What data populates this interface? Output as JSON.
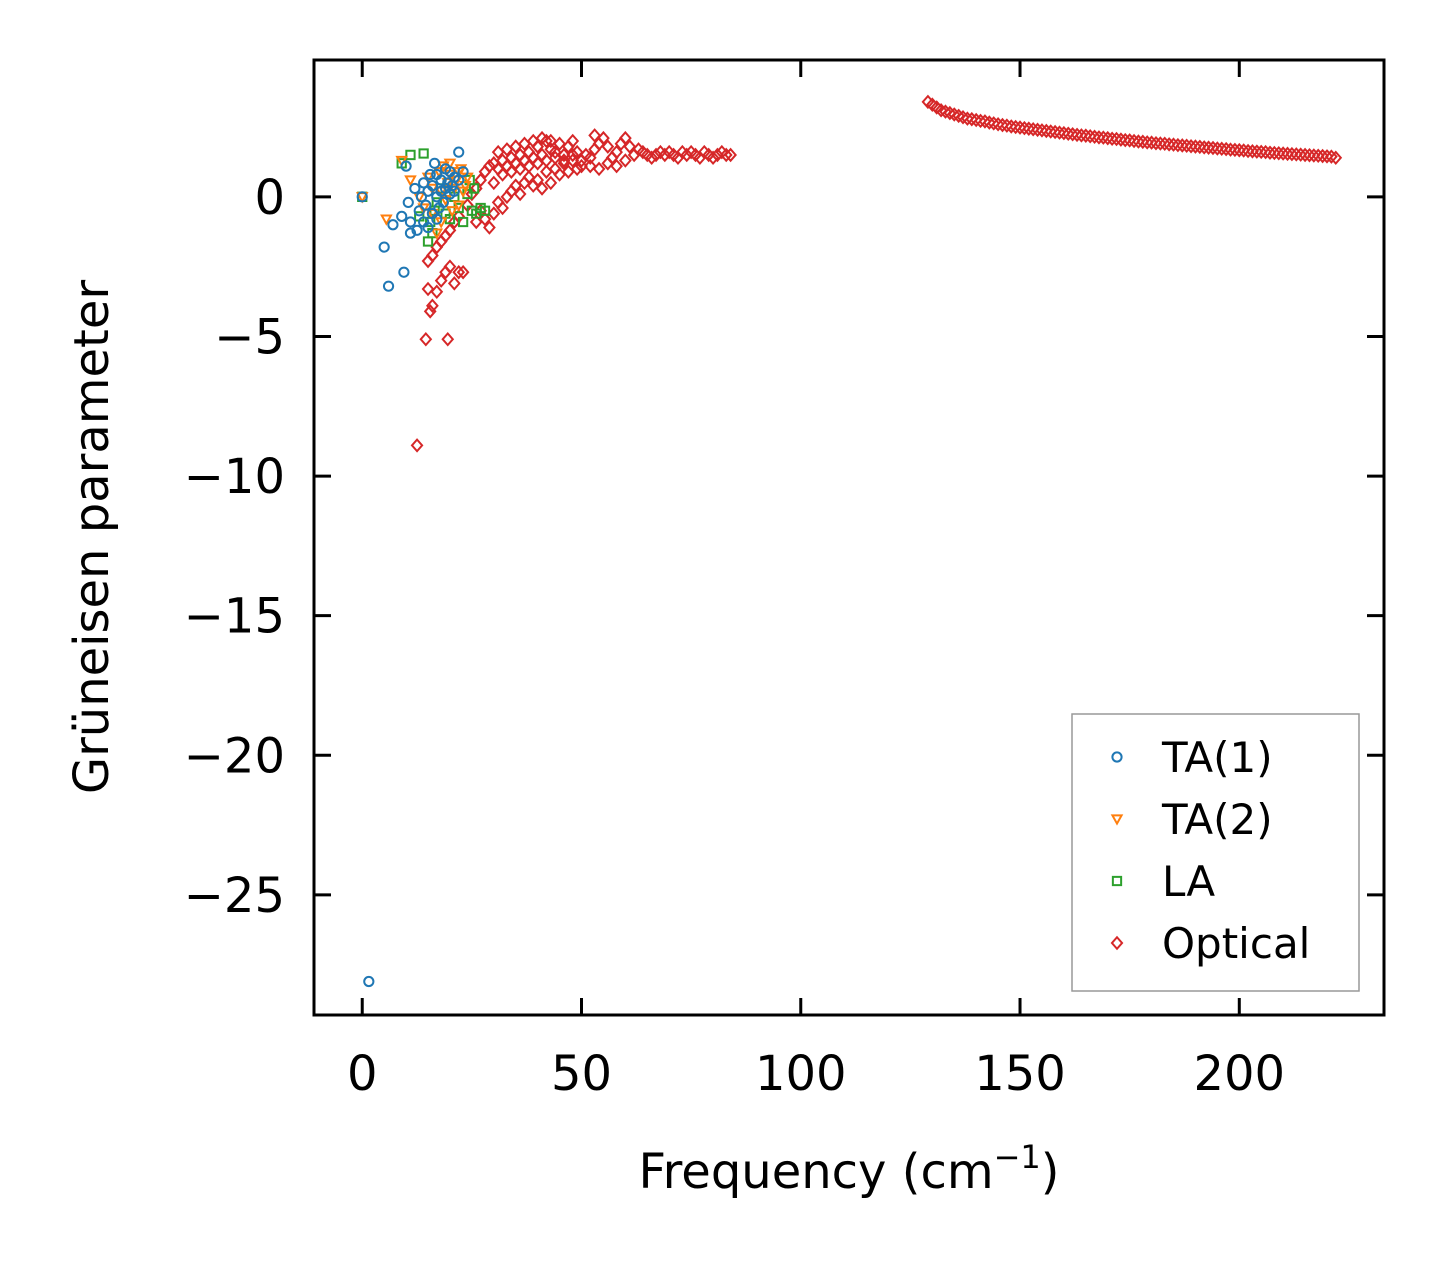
{
  "chart_data": {
    "type": "scatter",
    "title": "",
    "xlabel": "Frequency (cm",
    "xlabel_sup": "−1",
    "xlabel_end": ")",
    "ylabel": "Grüneisen parameter",
    "xlim": [
      -11,
      233
    ],
    "ylim": [
      -29.3,
      4.9
    ],
    "x_ticks": [
      0,
      50,
      100,
      150,
      200
    ],
    "x_tick_labels": [
      "0",
      "50",
      "100",
      "150",
      "200"
    ],
    "y_ticks": [
      0,
      -5,
      -10,
      -15,
      -20,
      -25
    ],
    "y_tick_labels": [
      "0",
      "−5",
      "−10",
      "−15",
      "−20",
      "−25"
    ],
    "legend_position": "bottom-right",
    "series": [
      {
        "name": "TA(1)",
        "marker": "circle",
        "color": "#1f77b4",
        "points": [
          [
            1.5,
            -28.1
          ],
          [
            0,
            0
          ],
          [
            5,
            -1.8
          ],
          [
            6,
            -3.2
          ],
          [
            7,
            -1.0
          ],
          [
            9,
            -0.7
          ],
          [
            9.5,
            -2.7
          ],
          [
            10,
            1.1
          ],
          [
            10.5,
            -0.2
          ],
          [
            11,
            -1.3
          ],
          [
            11,
            -0.9
          ],
          [
            12,
            0.3
          ],
          [
            12.5,
            -1.2
          ],
          [
            13,
            -0.5
          ],
          [
            13.5,
            0.0
          ],
          [
            14,
            0.5
          ],
          [
            14.5,
            -0.3
          ],
          [
            15,
            0.2
          ],
          [
            15,
            -1.1
          ],
          [
            16,
            0.4
          ],
          [
            16,
            -0.6
          ],
          [
            17,
            0.0
          ],
          [
            17,
            0.8
          ],
          [
            17.5,
            -0.4
          ],
          [
            18,
            0.6
          ],
          [
            18,
            0.2
          ],
          [
            18.5,
            -0.2
          ],
          [
            19,
            1.0
          ],
          [
            19,
            0.3
          ],
          [
            19.5,
            0.5
          ],
          [
            20,
            0.1
          ],
          [
            20,
            0.9
          ],
          [
            20.5,
            0.4
          ],
          [
            21,
            0.7
          ],
          [
            21,
            0.2
          ],
          [
            22,
            1.6
          ],
          [
            22,
            0.6
          ],
          [
            23,
            0.9
          ],
          [
            16.5,
            1.2
          ],
          [
            14,
            -0.9
          ],
          [
            15.5,
            0.8
          ],
          [
            17,
            -0.8
          ]
        ]
      },
      {
        "name": "TA(2)",
        "marker": "triangle-down",
        "color": "#ff7f0e",
        "points": [
          [
            0,
            0
          ],
          [
            5.5,
            -0.8
          ],
          [
            9,
            1.3
          ],
          [
            11,
            0.6
          ],
          [
            13,
            0.0
          ],
          [
            14,
            -0.4
          ],
          [
            15,
            0.7
          ],
          [
            16,
            0.3
          ],
          [
            17,
            -1.3
          ],
          [
            17.5,
            0.9
          ],
          [
            18,
            0.2
          ],
          [
            18.5,
            1.1
          ],
          [
            19,
            -0.1
          ],
          [
            19.5,
            0.5
          ],
          [
            20,
            0.8
          ],
          [
            20.5,
            -0.5
          ],
          [
            21,
            0.3
          ],
          [
            21.5,
            0.6
          ],
          [
            22,
            0.9
          ],
          [
            22.5,
            1.0
          ],
          [
            23,
            0.2
          ],
          [
            23.5,
            0.4
          ],
          [
            24,
            0.7
          ],
          [
            16,
            -0.6
          ],
          [
            18,
            -0.9
          ],
          [
            22,
            -0.3
          ],
          [
            20,
            1.2
          ]
        ]
      },
      {
        "name": "LA",
        "marker": "square",
        "color": "#2ca02c",
        "points": [
          [
            0,
            0
          ],
          [
            9,
            1.2
          ],
          [
            11,
            1.5
          ],
          [
            14,
            1.55
          ],
          [
            13,
            -0.7
          ],
          [
            15,
            -1.6
          ],
          [
            15.5,
            -0.9
          ],
          [
            16,
            -1.3
          ],
          [
            16.5,
            -0.5
          ],
          [
            17,
            -0.2
          ],
          [
            18,
            0.3
          ],
          [
            19,
            -0.6
          ],
          [
            20,
            -0.8
          ],
          [
            21,
            0.0
          ],
          [
            22,
            -0.4
          ],
          [
            23,
            -0.9
          ],
          [
            24,
            0.1
          ],
          [
            25,
            -0.5
          ],
          [
            26,
            -0.6
          ],
          [
            27,
            -0.4
          ],
          [
            28,
            -0.5
          ],
          [
            24.5,
            0.6
          ],
          [
            25.5,
            0.3
          ],
          [
            19.5,
            0.5
          ]
        ]
      },
      {
        "name": "Optical",
        "marker": "diamond",
        "color": "#d62728",
        "points": [
          [
            12.5,
            -8.9
          ],
          [
            14.5,
            -5.1
          ],
          [
            19.5,
            -5.1
          ],
          [
            15.5,
            -4.1
          ],
          [
            16,
            -3.9
          ],
          [
            15,
            -3.3
          ],
          [
            17,
            -3.4
          ],
          [
            18,
            -3.0
          ],
          [
            19,
            -2.7
          ],
          [
            20,
            -2.5
          ],
          [
            21,
            -3.1
          ],
          [
            22,
            -2.7
          ],
          [
            23,
            -2.7
          ],
          [
            15,
            -2.3
          ],
          [
            16,
            -2.1
          ],
          [
            17,
            -1.8
          ],
          [
            18,
            -1.6
          ],
          [
            19,
            -1.4
          ],
          [
            20,
            -1.2
          ],
          [
            21,
            -0.9
          ],
          [
            22,
            -0.7
          ],
          [
            24,
            -0.3
          ],
          [
            25,
            0.1
          ],
          [
            26,
            0.3
          ],
          [
            27,
            0.6
          ],
          [
            28,
            0.9
          ],
          [
            29,
            1.1
          ],
          [
            30,
            1.2
          ],
          [
            31,
            1.0
          ],
          [
            32,
            1.3
          ],
          [
            33,
            1.1
          ],
          [
            34,
            1.4
          ],
          [
            35,
            1.2
          ],
          [
            36,
            1.5
          ],
          [
            37,
            1.3
          ],
          [
            38,
            1.6
          ],
          [
            39,
            1.4
          ],
          [
            40,
            1.8
          ],
          [
            41,
            1.5
          ],
          [
            42,
            2.0
          ],
          [
            43,
            1.7
          ],
          [
            44,
            1.6
          ],
          [
            45,
            1.9
          ],
          [
            46,
            1.5
          ],
          [
            47,
            1.8
          ],
          [
            48,
            2.0
          ],
          [
            49,
            1.6
          ],
          [
            50,
            1.3
          ],
          [
            51,
            1.5
          ],
          [
            52,
            1.1
          ],
          [
            53,
            1.7
          ],
          [
            54,
            1.9
          ],
          [
            55,
            2.1
          ],
          [
            56,
            1.8
          ],
          [
            57,
            1.4
          ],
          [
            58,
            1.6
          ],
          [
            59,
            1.9
          ],
          [
            60,
            2.1
          ],
          [
            61,
            1.8
          ],
          [
            62,
            1.5
          ],
          [
            63,
            1.7
          ],
          [
            64,
            1.6
          ],
          [
            65,
            1.5
          ],
          [
            66,
            1.4
          ],
          [
            67,
            1.5
          ],
          [
            68,
            1.6
          ],
          [
            69,
            1.5
          ],
          [
            70,
            1.6
          ],
          [
            71,
            1.5
          ],
          [
            72,
            1.4
          ],
          [
            73,
            1.6
          ],
          [
            74,
            1.5
          ],
          [
            75,
            1.6
          ],
          [
            76,
            1.5
          ],
          [
            77,
            1.4
          ],
          [
            78,
            1.6
          ],
          [
            79,
            1.5
          ],
          [
            80,
            1.4
          ],
          [
            81,
            1.5
          ],
          [
            82,
            1.6
          ],
          [
            83,
            1.5
          ],
          [
            84,
            1.5
          ],
          [
            26,
            -0.9
          ],
          [
            27,
            -0.5
          ],
          [
            28,
            -0.8
          ],
          [
            29,
            -1.1
          ],
          [
            30,
            -0.6
          ],
          [
            31,
            -0.2
          ],
          [
            32,
            -0.4
          ],
          [
            33,
            0.0
          ],
          [
            34,
            0.2
          ],
          [
            35,
            0.4
          ],
          [
            36,
            0.1
          ],
          [
            37,
            0.5
          ],
          [
            38,
            0.7
          ],
          [
            39,
            0.4
          ],
          [
            40,
            0.6
          ],
          [
            41,
            0.3
          ],
          [
            42,
            0.9
          ],
          [
            43,
            0.5
          ],
          [
            44,
            1.0
          ],
          [
            45,
            0.8
          ],
          [
            46,
            1.2
          ],
          [
            47,
            0.9
          ],
          [
            48,
            1.3
          ],
          [
            49,
            1.0
          ],
          [
            50,
            1.1
          ],
          [
            52,
            1.4
          ],
          [
            54,
            1.0
          ],
          [
            56,
            1.2
          ],
          [
            58,
            1.1
          ],
          [
            60,
            1.3
          ],
          [
            30,
            0.5
          ],
          [
            32,
            0.8
          ],
          [
            34,
            0.9
          ],
          [
            36,
            1.0
          ],
          [
            38,
            1.1
          ],
          [
            40,
            1.2
          ],
          [
            42,
            1.3
          ],
          [
            44,
            1.4
          ],
          [
            46,
            1.3
          ],
          [
            48,
            1.5
          ],
          [
            31,
            1.6
          ],
          [
            33,
            1.7
          ],
          [
            35,
            1.8
          ],
          [
            37,
            1.9
          ],
          [
            39,
            2.0
          ],
          [
            41,
            2.1
          ],
          [
            43,
            2.0
          ],
          [
            53,
            2.2
          ],
          [
            129,
            3.4
          ],
          [
            130,
            3.3
          ],
          [
            131,
            3.2
          ],
          [
            132,
            3.1
          ],
          [
            133,
            3.05
          ],
          [
            134,
            3.0
          ],
          [
            135,
            2.95
          ],
          [
            136,
            2.9
          ],
          [
            137,
            2.85
          ],
          [
            138,
            2.8
          ],
          [
            139,
            2.78
          ],
          [
            140,
            2.75
          ],
          [
            141,
            2.72
          ],
          [
            142,
            2.7
          ],
          [
            143,
            2.66
          ],
          [
            144,
            2.63
          ],
          [
            145,
            2.6
          ],
          [
            146,
            2.57
          ],
          [
            147,
            2.55
          ],
          [
            148,
            2.52
          ],
          [
            149,
            2.5
          ],
          [
            150,
            2.48
          ],
          [
            151,
            2.46
          ],
          [
            152,
            2.44
          ],
          [
            153,
            2.42
          ],
          [
            154,
            2.4
          ],
          [
            155,
            2.38
          ],
          [
            156,
            2.36
          ],
          [
            157,
            2.34
          ],
          [
            158,
            2.32
          ],
          [
            159,
            2.3
          ],
          [
            160,
            2.28
          ],
          [
            161,
            2.26
          ],
          [
            162,
            2.24
          ],
          [
            163,
            2.22
          ],
          [
            164,
            2.2
          ],
          [
            165,
            2.19
          ],
          [
            166,
            2.17
          ],
          [
            167,
            2.15
          ],
          [
            168,
            2.13
          ],
          [
            169,
            2.12
          ],
          [
            170,
            2.1
          ],
          [
            171,
            2.08
          ],
          [
            172,
            2.07
          ],
          [
            173,
            2.05
          ],
          [
            174,
            2.03
          ],
          [
            175,
            2.02
          ],
          [
            176,
            2.0
          ],
          [
            177,
            1.98
          ],
          [
            178,
            1.97
          ],
          [
            179,
            1.95
          ],
          [
            180,
            1.94
          ],
          [
            181,
            1.92
          ],
          [
            182,
            1.91
          ],
          [
            183,
            1.9
          ],
          [
            184,
            1.88
          ],
          [
            185,
            1.87
          ],
          [
            186,
            1.85
          ],
          [
            187,
            1.84
          ],
          [
            188,
            1.83
          ],
          [
            189,
            1.81
          ],
          [
            190,
            1.8
          ],
          [
            191,
            1.79
          ],
          [
            192,
            1.77
          ],
          [
            193,
            1.76
          ],
          [
            194,
            1.75
          ],
          [
            195,
            1.73
          ],
          [
            196,
            1.72
          ],
          [
            197,
            1.71
          ],
          [
            198,
            1.69
          ],
          [
            199,
            1.68
          ],
          [
            200,
            1.67
          ],
          [
            201,
            1.66
          ],
          [
            202,
            1.64
          ],
          [
            203,
            1.63
          ],
          [
            204,
            1.62
          ],
          [
            205,
            1.61
          ],
          [
            206,
            1.6
          ],
          [
            207,
            1.58
          ],
          [
            208,
            1.57
          ],
          [
            209,
            1.56
          ],
          [
            210,
            1.55
          ],
          [
            211,
            1.54
          ],
          [
            212,
            1.53
          ],
          [
            213,
            1.52
          ],
          [
            214,
            1.51
          ],
          [
            215,
            1.5
          ],
          [
            216,
            1.49
          ],
          [
            217,
            1.48
          ],
          [
            218,
            1.47
          ],
          [
            219,
            1.46
          ],
          [
            220,
            1.45
          ],
          [
            221,
            1.44
          ],
          [
            222,
            1.4
          ]
        ]
      }
    ]
  }
}
